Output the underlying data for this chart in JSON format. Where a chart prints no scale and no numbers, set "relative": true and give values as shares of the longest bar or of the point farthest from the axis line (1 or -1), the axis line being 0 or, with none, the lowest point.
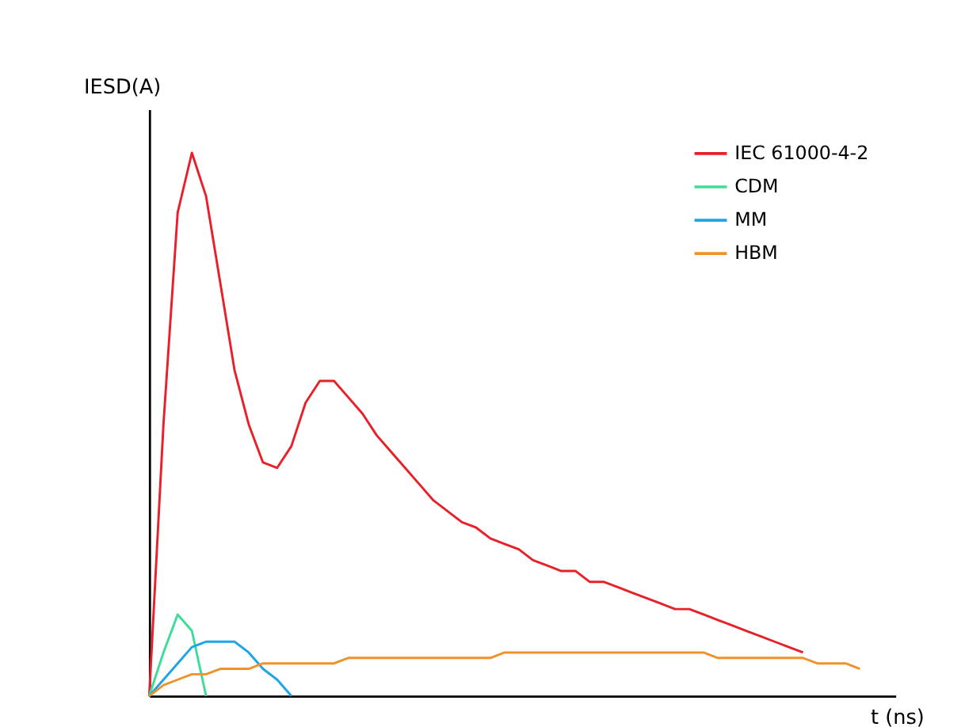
{
  "chart_data": {
    "type": "line",
    "relative": true,
    "xlabel": "t (ns)",
    "ylabel": "IESD(A)",
    "legend": "top right",
    "grid": false,
    "tick_labels": false,
    "marker": "none",
    "line_style": "solid",
    "categories": [
      null,
      null,
      null,
      null,
      null,
      null,
      null,
      null,
      null,
      null,
      null,
      null,
      null,
      null,
      null,
      null,
      null,
      null,
      null,
      null,
      null,
      null,
      null,
      null,
      null,
      null,
      null,
      null,
      null,
      null,
      null,
      null,
      null,
      null,
      null,
      null,
      null,
      null,
      null,
      null,
      null,
      null,
      null,
      null,
      null,
      null,
      null,
      null,
      null,
      null,
      null,
      null
    ],
    "series": [
      {
        "name": "IEC 61000-4-2",
        "color": "#e8202a",
        "values": [
          0,
          0.5,
          0.89,
          1,
          0.92,
          0.76,
          0.6,
          0.5,
          0.43,
          0.42,
          0.46,
          0.54,
          0.58,
          0.58,
          0.55,
          0.52,
          0.48,
          0.45,
          0.42,
          0.39,
          0.36,
          0.34,
          0.32,
          0.31,
          0.29,
          0.28,
          0.27,
          0.25,
          0.24,
          0.23,
          0.23,
          0.21,
          0.21,
          0.2,
          0.19,
          0.18,
          0.17,
          0.16,
          0.16,
          0.15,
          0.14,
          0.13,
          0.12,
          0.11,
          0.1,
          0.09,
          0.08,
          null,
          null,
          null,
          null,
          null
        ]
      },
      {
        "name": "CDM",
        "color": "#3ddc97",
        "values": [
          0,
          0.08,
          0.15,
          0.12,
          0,
          null,
          null,
          null,
          null,
          null,
          null,
          null,
          null,
          null,
          null,
          null,
          null,
          null,
          null,
          null,
          null,
          null,
          null,
          null,
          null,
          null,
          null,
          null,
          null,
          null,
          null,
          null,
          null,
          null,
          null,
          null,
          null,
          null,
          null,
          null,
          null,
          null,
          null,
          null,
          null,
          null,
          null,
          null,
          null,
          null,
          null,
          null
        ]
      },
      {
        "name": "MM",
        "color": "#1ea5e8",
        "values": [
          0,
          0.03,
          0.06,
          0.09,
          0.1,
          0.1,
          0.1,
          0.08,
          0.05,
          0.03,
          0,
          null,
          null,
          null,
          null,
          null,
          null,
          null,
          null,
          null,
          null,
          null,
          null,
          null,
          null,
          null,
          null,
          null,
          null,
          null,
          null,
          null,
          null,
          null,
          null,
          null,
          null,
          null,
          null,
          null,
          null,
          null,
          null,
          null,
          null,
          null,
          null,
          null,
          null,
          null,
          null,
          null
        ]
      },
      {
        "name": "HBM",
        "color": "#f0922b",
        "values": [
          0,
          0.02,
          0.03,
          0.04,
          0.04,
          0.05,
          0.05,
          0.05,
          0.06,
          0.06,
          0.06,
          0.06,
          0.06,
          0.06,
          0.07,
          0.07,
          0.07,
          0.07,
          0.07,
          0.07,
          0.07,
          0.07,
          0.07,
          0.07,
          0.07,
          0.08,
          0.08,
          0.08,
          0.08,
          0.08,
          0.08,
          0.08,
          0.08,
          0.08,
          0.08,
          0.08,
          0.08,
          0.08,
          0.08,
          0.08,
          0.07,
          0.07,
          0.07,
          0.07,
          0.07,
          0.07,
          0.07,
          0.06,
          0.06,
          0.06,
          0.05,
          null
        ]
      }
    ]
  }
}
